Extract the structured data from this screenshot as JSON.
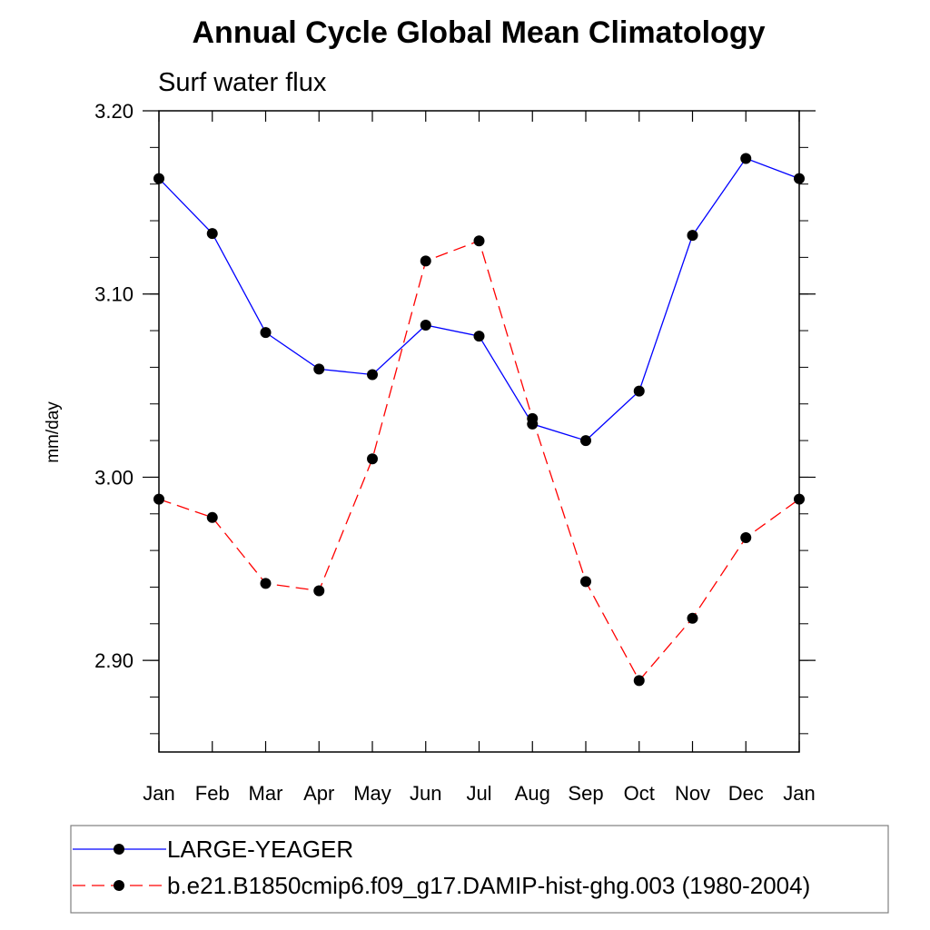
{
  "chart_data": {
    "type": "line",
    "title": "Annual Cycle Global Mean Climatology",
    "subtitle": "Surf water flux",
    "xlabel": "",
    "ylabel": "mm/day",
    "categories": [
      "Jan",
      "Feb",
      "Mar",
      "Apr",
      "May",
      "Jun",
      "Jul",
      "Aug",
      "Sep",
      "Oct",
      "Nov",
      "Dec",
      "Jan"
    ],
    "ylim": [
      2.85,
      3.2
    ],
    "yticks": [
      2.9,
      3.0,
      3.1,
      3.2
    ],
    "ytick_labels": [
      "2.90",
      "3.00",
      "3.10",
      "3.20"
    ],
    "series": [
      {
        "name": "LARGE-YEAGER",
        "color": "#0000ff",
        "line_style": "solid",
        "marker": "filled-circle",
        "values": [
          3.163,
          3.133,
          3.079,
          3.059,
          3.056,
          3.083,
          3.077,
          3.029,
          3.02,
          3.047,
          3.132,
          3.174,
          3.163
        ]
      },
      {
        "name": "b.e21.B1850cmip6.f09_g17.DAMIP-hist-ghg.003 (1980-2004)",
        "color": "#ff0000",
        "line_style": "dashed",
        "marker": "filled-circle",
        "values": [
          2.988,
          2.978,
          2.942,
          2.938,
          3.01,
          3.118,
          3.129,
          3.032,
          2.943,
          2.889,
          2.923,
          2.967,
          2.988
        ]
      }
    ],
    "legend_position": "bottom"
  }
}
